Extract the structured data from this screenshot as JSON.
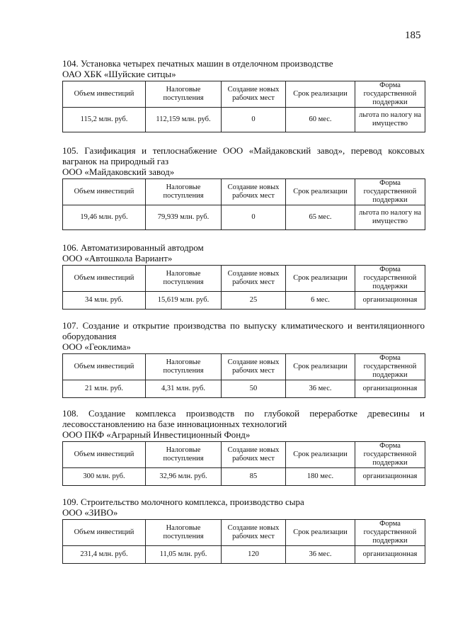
{
  "page_number": "185",
  "headers": [
    "Объем инвестиций",
    "Налоговые поступления",
    "Создание новых рабочих мест",
    "Срок реализации",
    "Форма государственной поддержки"
  ],
  "projects": [
    {
      "title": "104.  Установка четырех печатных машин в отделочном производстве",
      "company": "ОАО ХБК «Шуйские ситцы»",
      "row": [
        "115,2 млн. руб.",
        "112,159 млн. руб.",
        "0",
        "60 мес.",
        "льгота по налогу на имущество"
      ]
    },
    {
      "title": "105. Газификация и теплоснабжение ООО «Майдаковский завод», перевод коксовых вагранок на природный газ",
      "company": "ООО «Майдаковский завод»",
      "row": [
        "19,46 млн. руб.",
        "79,939 млн. руб.",
        "0",
        "65 мес.",
        "льгота по налогу на имущество"
      ]
    },
    {
      "title": "106.  Автоматизированный автодром",
      "company": "ООО «Автошкола Вариант»",
      "row": [
        "34 млн. руб.",
        "15,619 млн. руб.",
        "25",
        "6 мес.",
        "организационная"
      ]
    },
    {
      "title": "107. Создание и открытие производства по выпуску климатического и вентиляционного оборудования",
      "company": "ООО «Геоклима»",
      "row": [
        "21 млн. руб.",
        "4,31 млн. руб.",
        "50",
        "36 мес.",
        "организационная"
      ]
    },
    {
      "title": "108. Создание комплекса производств по глубокой переработке древесины и лесовосстановлению на базе инновационных технологий",
      "company": "ООО ПКФ «Аграрный Инвестиционный Фонд»",
      "row": [
        "300 млн. руб.",
        "32,96 млн. руб.",
        "85",
        "180 мес.",
        "организационная"
      ]
    },
    {
      "title": "109.  Строительство молочного комплекса, производство сыра",
      "company": "ООО «ЗИВО»",
      "row": [
        "231,4 млн. руб.",
        "11,05 млн. руб.",
        "120",
        "36 мес.",
        "организационная"
      ]
    }
  ]
}
